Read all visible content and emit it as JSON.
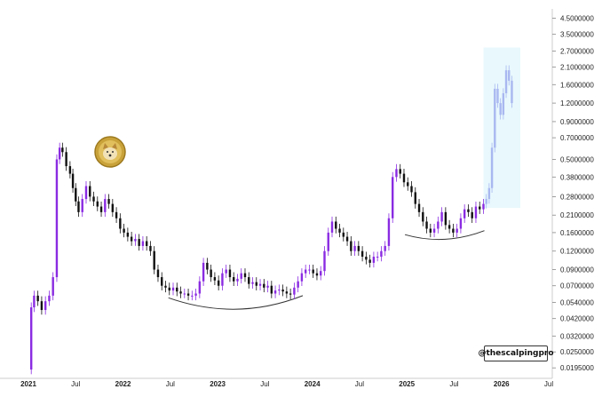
{
  "chart_data": {
    "type": "candlestick",
    "title": "",
    "xlabel": "",
    "ylabel": "",
    "y_scale": "log",
    "ylim": [
      0.018,
      5.2
    ],
    "y_ticks": [
      "4.5000000",
      "3.5000000",
      "2.7000000",
      "2.1000000",
      "1.6000000",
      "1.2000000",
      "0.9000000",
      "0.7000000",
      "0.5000000",
      "0.3800000",
      "0.2800000",
      "0.2100000",
      "0.1600000",
      "0.1200000",
      "0.0900000",
      "0.0700000",
      "0.0540000",
      "0.0420000",
      "0.0320000",
      "0.0250000",
      "0.0195000"
    ],
    "x_ticks": [
      "2021",
      "Jul",
      "2022",
      "Jul",
      "2023",
      "Jul",
      "2024",
      "Jul",
      "2025",
      "Jul",
      "2026",
      "Jul"
    ],
    "colors": {
      "up": "#8a2be2",
      "down": "#111111",
      "projection": "#a9b8f0",
      "projection_box": "#e8f8fd"
    },
    "series": [
      {
        "name": "",
        "kind": "close-path",
        "points": [
          [
            2021.0,
            0.019
          ],
          [
            2021.03,
            0.05
          ],
          [
            2021.06,
            0.06
          ],
          [
            2021.1,
            0.055
          ],
          [
            2021.14,
            0.048
          ],
          [
            2021.18,
            0.055
          ],
          [
            2021.22,
            0.06
          ],
          [
            2021.26,
            0.08
          ],
          [
            2021.3,
            0.5
          ],
          [
            2021.33,
            0.6
          ],
          [
            2021.36,
            0.56
          ],
          [
            2021.4,
            0.45
          ],
          [
            2021.44,
            0.4
          ],
          [
            2021.47,
            0.32
          ],
          [
            2021.5,
            0.26
          ],
          [
            2021.53,
            0.22
          ],
          [
            2021.57,
            0.27
          ],
          [
            2021.61,
            0.33
          ],
          [
            2021.65,
            0.28
          ],
          [
            2021.69,
            0.26
          ],
          [
            2021.73,
            0.24
          ],
          [
            2021.77,
            0.22
          ],
          [
            2021.81,
            0.27
          ],
          [
            2021.85,
            0.25
          ],
          [
            2021.89,
            0.22
          ],
          [
            2021.93,
            0.2
          ],
          [
            2021.97,
            0.17
          ],
          [
            2022.01,
            0.16
          ],
          [
            2022.05,
            0.15
          ],
          [
            2022.09,
            0.14
          ],
          [
            2022.13,
            0.145
          ],
          [
            2022.17,
            0.13
          ],
          [
            2022.21,
            0.14
          ],
          [
            2022.25,
            0.13
          ],
          [
            2022.29,
            0.12
          ],
          [
            2022.33,
            0.09
          ],
          [
            2022.37,
            0.08
          ],
          [
            2022.41,
            0.07
          ],
          [
            2022.45,
            0.068
          ],
          [
            2022.49,
            0.065
          ],
          [
            2022.53,
            0.068
          ],
          [
            2022.57,
            0.064
          ],
          [
            2022.61,
            0.062
          ],
          [
            2022.65,
            0.062
          ],
          [
            2022.69,
            0.06
          ],
          [
            2022.73,
            0.06
          ],
          [
            2022.77,
            0.062
          ],
          [
            2022.81,
            0.075
          ],
          [
            2022.85,
            0.1
          ],
          [
            2022.89,
            0.09
          ],
          [
            2022.93,
            0.08
          ],
          [
            2022.97,
            0.076
          ],
          [
            2023.01,
            0.07
          ],
          [
            2023.05,
            0.085
          ],
          [
            2023.09,
            0.09
          ],
          [
            2023.13,
            0.08
          ],
          [
            2023.17,
            0.075
          ],
          [
            2023.21,
            0.078
          ],
          [
            2023.25,
            0.085
          ],
          [
            2023.29,
            0.08
          ],
          [
            2023.33,
            0.072
          ],
          [
            2023.37,
            0.074
          ],
          [
            2023.41,
            0.07
          ],
          [
            2023.45,
            0.072
          ],
          [
            2023.49,
            0.068
          ],
          [
            2023.53,
            0.07
          ],
          [
            2023.57,
            0.062
          ],
          [
            2023.61,
            0.065
          ],
          [
            2023.65,
            0.066
          ],
          [
            2023.69,
            0.064
          ],
          [
            2023.73,
            0.062
          ],
          [
            2023.77,
            0.061
          ],
          [
            2023.81,
            0.068
          ],
          [
            2023.85,
            0.075
          ],
          [
            2023.89,
            0.085
          ],
          [
            2023.93,
            0.09
          ],
          [
            2023.97,
            0.09
          ],
          [
            2024.01,
            0.085
          ],
          [
            2024.05,
            0.082
          ],
          [
            2024.09,
            0.088
          ],
          [
            2024.13,
            0.12
          ],
          [
            2024.17,
            0.16
          ],
          [
            2024.21,
            0.19
          ],
          [
            2024.25,
            0.17
          ],
          [
            2024.29,
            0.16
          ],
          [
            2024.33,
            0.15
          ],
          [
            2024.37,
            0.14
          ],
          [
            2024.41,
            0.12
          ],
          [
            2024.45,
            0.13
          ],
          [
            2024.49,
            0.12
          ],
          [
            2024.53,
            0.11
          ],
          [
            2024.57,
            0.105
          ],
          [
            2024.61,
            0.1
          ],
          [
            2024.65,
            0.11
          ],
          [
            2024.69,
            0.11
          ],
          [
            2024.73,
            0.12
          ],
          [
            2024.77,
            0.13
          ],
          [
            2024.81,
            0.2
          ],
          [
            2024.85,
            0.38
          ],
          [
            2024.89,
            0.43
          ],
          [
            2024.93,
            0.4
          ],
          [
            2024.97,
            0.35
          ],
          [
            2025.01,
            0.33
          ],
          [
            2025.05,
            0.3
          ],
          [
            2025.09,
            0.25
          ],
          [
            2025.13,
            0.22
          ],
          [
            2025.17,
            0.19
          ],
          [
            2025.21,
            0.17
          ],
          [
            2025.25,
            0.16
          ],
          [
            2025.29,
            0.17
          ],
          [
            2025.33,
            0.19
          ],
          [
            2025.37,
            0.22
          ],
          [
            2025.41,
            0.18
          ],
          [
            2025.45,
            0.17
          ],
          [
            2025.49,
            0.16
          ],
          [
            2025.53,
            0.17
          ],
          [
            2025.57,
            0.2
          ],
          [
            2025.61,
            0.23
          ],
          [
            2025.65,
            0.22
          ],
          [
            2025.69,
            0.2
          ],
          [
            2025.73,
            0.24
          ],
          [
            2025.77,
            0.23
          ],
          [
            2025.81,
            0.25
          ]
        ]
      },
      {
        "name": "",
        "kind": "projection",
        "points": [
          [
            2025.84,
            0.27
          ],
          [
            2025.87,
            0.32
          ],
          [
            2025.9,
            0.6
          ],
          [
            2025.93,
            1.5
          ],
          [
            2025.96,
            1.2
          ],
          [
            2025.99,
            1.0
          ],
          [
            2026.02,
            1.4
          ],
          [
            2026.05,
            2.0
          ],
          [
            2026.08,
            1.7
          ],
          [
            2026.11,
            1.2
          ]
        ]
      }
    ],
    "annotations": [
      "@thescalpingpro"
    ]
  },
  "icons": {
    "logo": "dogecoin-logo"
  }
}
